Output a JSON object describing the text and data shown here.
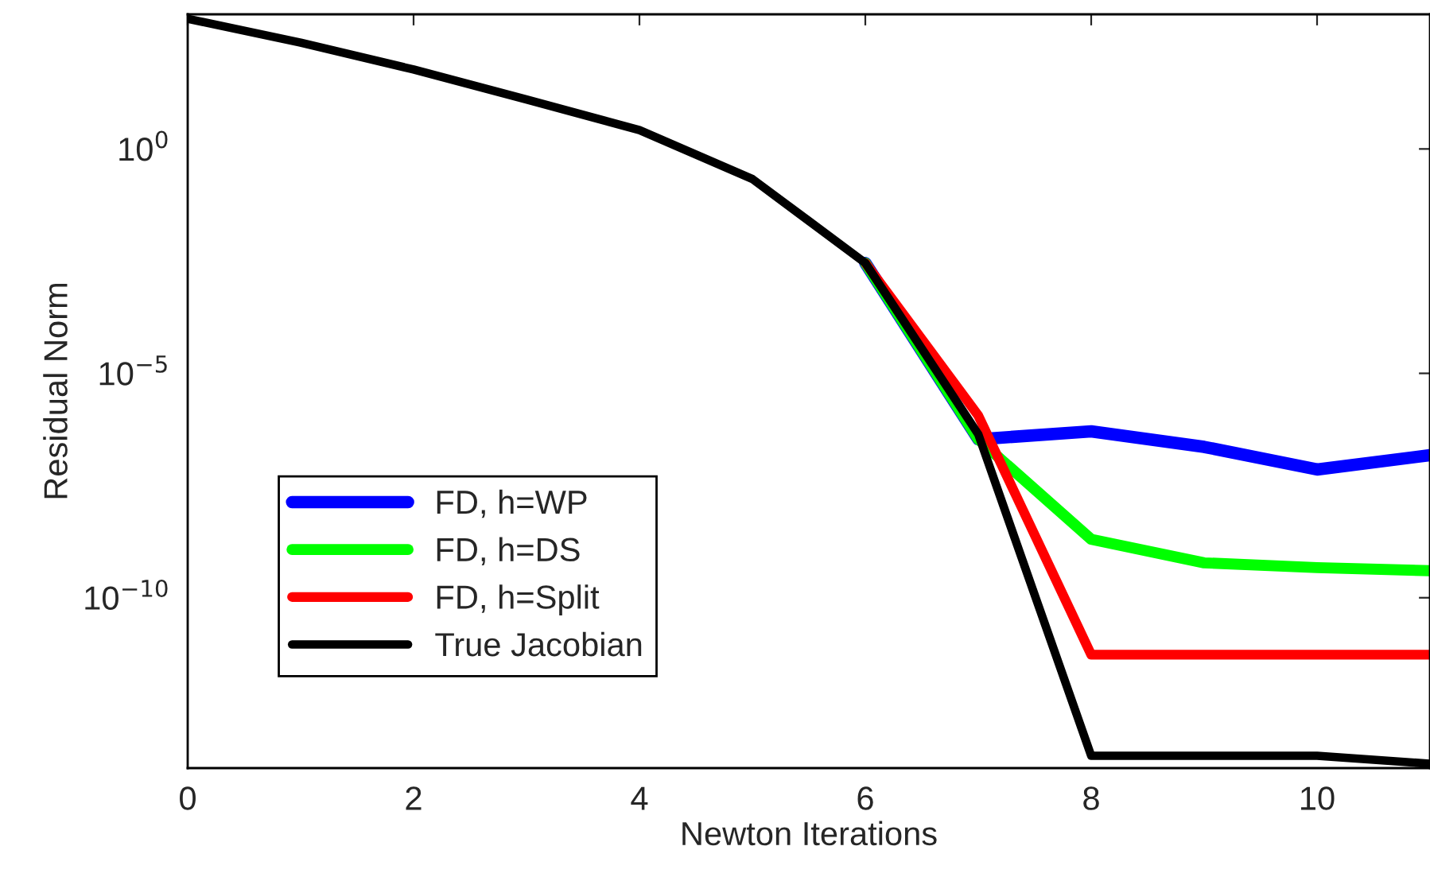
{
  "chart_data": {
    "type": "line",
    "xlabel": "Newton Iterations",
    "ylabel": "Residual Norm",
    "x": [
      0,
      1,
      2,
      3,
      4,
      5,
      6,
      7,
      8,
      9,
      10,
      11
    ],
    "series": [
      {
        "name": "FD, h=WP",
        "color": "#0000ff",
        "values": [
          null,
          null,
          null,
          null,
          null,
          null,
          0.00288,
          3.4e-07,
          5.1e-07,
          2.3e-07,
          7.2e-08,
          1.5e-07
        ]
      },
      {
        "name": "FD, h=DS",
        "color": "#00ff00",
        "values": [
          null,
          null,
          null,
          null,
          null,
          null,
          0.00288,
          3.4e-07,
          2e-09,
          6e-10,
          4.7e-10,
          4e-10
        ]
      },
      {
        "name": "FD, h=Split",
        "color": "#ff0000",
        "values": [
          null,
          null,
          null,
          null,
          null,
          null,
          0.00288,
          1.15e-06,
          5.4e-12,
          5.4e-12,
          5.4e-12,
          5.4e-12
        ]
      },
      {
        "name": "True Jacobian",
        "color": "#000000",
        "values": [
          794,
          234,
          58.9,
          12.6,
          2.63,
          0.214,
          0.00288,
          4.4e-07,
          3e-14,
          3e-14,
          3e-14,
          2e-14
        ]
      }
    ],
    "log": "y",
    "xlim": [
      0,
      11
    ],
    "xticks": [
      0,
      2,
      4,
      6,
      8,
      10
    ],
    "ylim": [
      1.6e-14,
      1000
    ],
    "yticks": [
      {
        "value": 1e-10,
        "label": "10$^{−10}$"
      },
      {
        "value": 1e-05,
        "label": "10$^{−5}$"
      },
      {
        "value": 1,
        "label": "10$^{0}$"
      }
    ],
    "grid": false,
    "legend": "lower left",
    "line_style": "solid",
    "marker": "none"
  }
}
